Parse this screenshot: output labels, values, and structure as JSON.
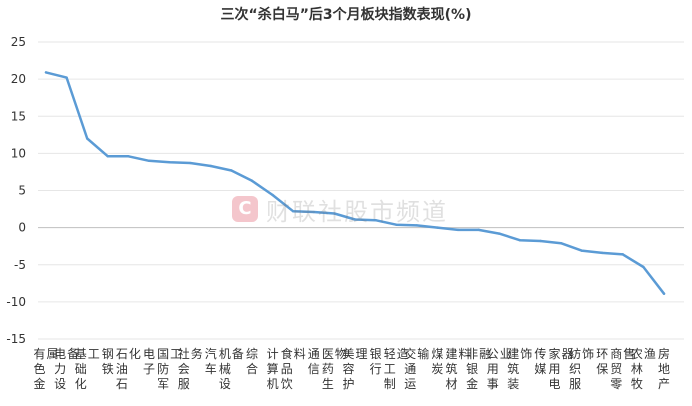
{
  "chart_data": {
    "type": "line",
    "title": "三次“杀白马”后3个月板块指数表现(%)",
    "xlabel": "",
    "ylabel": "",
    "ylim": [
      -15,
      25
    ],
    "yticks": [
      -15,
      -10,
      -5,
      0,
      5,
      10,
      15,
      20,
      25
    ],
    "grid": true,
    "legend": "none",
    "line_color": "#5b9bd5",
    "categories": [
      "有色金属",
      "电力设备",
      "基础化工",
      "钢铁",
      "石油石化",
      "电子",
      "国防军工",
      "社会服务",
      "汽车",
      "机械设备",
      "综合",
      "计算机",
      "食品饮料",
      "通信",
      "医药生物",
      "美容护理",
      "银行",
      "轻工制造",
      "交通运输",
      "煤炭",
      "建筑材料",
      "非银金融",
      "公用事业",
      "建筑装饰",
      "传媒",
      "家用电器",
      "纺织服饰",
      "环保",
      "商贸零售",
      "农林牧渔",
      "房地产"
    ],
    "values": [
      20.9,
      20.2,
      12.0,
      9.6,
      9.6,
      9.0,
      8.8,
      8.7,
      8.3,
      7.7,
      6.3,
      4.4,
      2.2,
      2.1,
      1.9,
      1.1,
      1.0,
      0.4,
      0.3,
      0.0,
      -0.3,
      -0.3,
      -0.8,
      -1.7,
      -1.8,
      -2.1,
      -3.1,
      -3.4,
      -3.6,
      -5.3,
      -8.9
    ]
  },
  "watermark": {
    "logo_letter": "C",
    "text": "财联社股市频道"
  }
}
